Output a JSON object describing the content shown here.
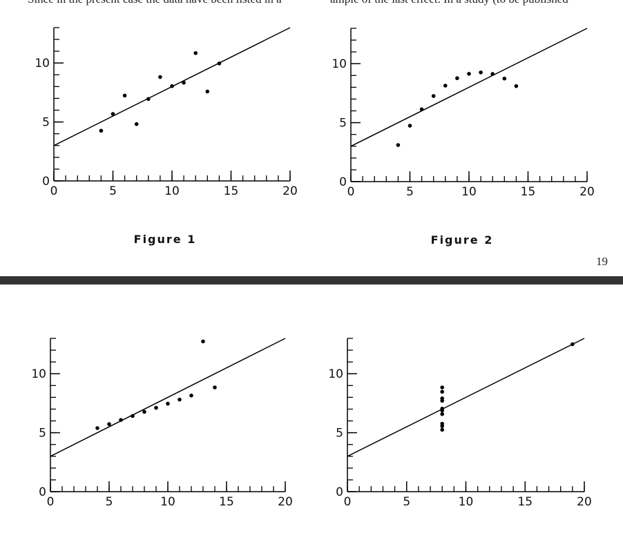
{
  "header_text": [
    "Since in the present case the data have been listed in a",
    "ample of the last effect. In a study (to be published"
  ],
  "page_number": "19",
  "chart_data": [
    {
      "type": "scatter",
      "caption": "Figure 1",
      "color": "#000",
      "x": [
        10,
        8,
        13,
        9,
        11,
        14,
        6,
        4,
        12,
        7,
        5
      ],
      "y": [
        8.04,
        6.95,
        7.58,
        8.81,
        8.33,
        9.96,
        7.24,
        4.26,
        10.84,
        4.82,
        5.68
      ],
      "fit": {
        "x": [
          0,
          20
        ],
        "y": [
          3,
          13
        ]
      },
      "xlim": [
        0,
        20
      ],
      "ylim": [
        0,
        13
      ],
      "xticks": [
        0,
        5,
        10,
        15,
        20
      ],
      "yticks": [
        0,
        5,
        10
      ],
      "xminorticks": [
        0,
        1,
        2,
        3,
        4,
        5,
        6,
        7,
        8,
        9,
        10,
        11,
        12,
        13,
        14,
        15,
        16,
        17,
        18,
        19,
        20
      ],
      "yminorticks": [
        0,
        1,
        2,
        3,
        4,
        5,
        6,
        7,
        8,
        9,
        10,
        11,
        12,
        13
      ]
    },
    {
      "type": "scatter",
      "caption": "Figure 2",
      "color": "#000",
      "x": [
        10,
        8,
        13,
        9,
        11,
        14,
        6,
        4,
        12,
        7,
        5
      ],
      "y": [
        9.14,
        8.14,
        8.74,
        8.77,
        9.26,
        8.1,
        6.13,
        3.1,
        9.13,
        7.26,
        4.74
      ],
      "fit": {
        "x": [
          0,
          20
        ],
        "y": [
          3,
          13
        ]
      },
      "xlim": [
        0,
        20
      ],
      "ylim": [
        0,
        13
      ],
      "xticks": [
        0,
        5,
        10,
        15,
        20
      ],
      "yticks": [
        0,
        5,
        10
      ],
      "xminorticks": [
        0,
        1,
        2,
        3,
        4,
        5,
        6,
        7,
        8,
        9,
        10,
        11,
        12,
        13,
        14,
        15,
        16,
        17,
        18,
        19,
        20
      ],
      "yminorticks": [
        0,
        1,
        2,
        3,
        4,
        5,
        6,
        7,
        8,
        9,
        10,
        11,
        12,
        13
      ]
    },
    {
      "type": "scatter",
      "color": "#000",
      "x": [
        10,
        8,
        13,
        9,
        11,
        14,
        6,
        4,
        12,
        7,
        5
      ],
      "y": [
        7.46,
        6.77,
        12.74,
        7.11,
        7.81,
        8.84,
        6.08,
        5.39,
        8.15,
        6.42,
        5.73
      ],
      "fit": {
        "x": [
          0,
          20
        ],
        "y": [
          3,
          13
        ]
      },
      "xlim": [
        0,
        20
      ],
      "ylim": [
        0,
        13
      ],
      "xticks": [
        0,
        5,
        10,
        15,
        20
      ],
      "yticks": [
        0,
        5,
        10
      ],
      "xminorticks": [
        0,
        1,
        2,
        3,
        4,
        5,
        6,
        7,
        8,
        9,
        10,
        11,
        12,
        13,
        14,
        15,
        16,
        17,
        18,
        19,
        20
      ],
      "yminorticks": [
        0,
        1,
        2,
        3,
        4,
        5,
        6,
        7,
        8,
        9,
        10,
        11,
        12,
        13
      ]
    },
    {
      "type": "scatter",
      "color": "#000",
      "x": [
        8,
        8,
        8,
        8,
        8,
        8,
        8,
        19,
        8,
        8,
        8
      ],
      "y": [
        6.58,
        5.76,
        7.71,
        8.84,
        8.47,
        7.04,
        5.25,
        12.5,
        5.56,
        7.91,
        6.89
      ],
      "fit": {
        "x": [
          0,
          20
        ],
        "y": [
          3,
          13
        ]
      },
      "xlim": [
        0,
        20
      ],
      "ylim": [
        0,
        13
      ],
      "xticks": [
        0,
        5,
        10,
        15,
        20
      ],
      "yticks": [
        0,
        5,
        10
      ],
      "xminorticks": [
        0,
        1,
        2,
        3,
        4,
        5,
        6,
        7,
        8,
        9,
        10,
        11,
        12,
        13,
        14,
        15,
        16,
        17,
        18,
        19,
        20
      ],
      "yminorticks": [
        0,
        1,
        2,
        3,
        4,
        5,
        6,
        7,
        8,
        9,
        10,
        11,
        12,
        13
      ]
    }
  ]
}
